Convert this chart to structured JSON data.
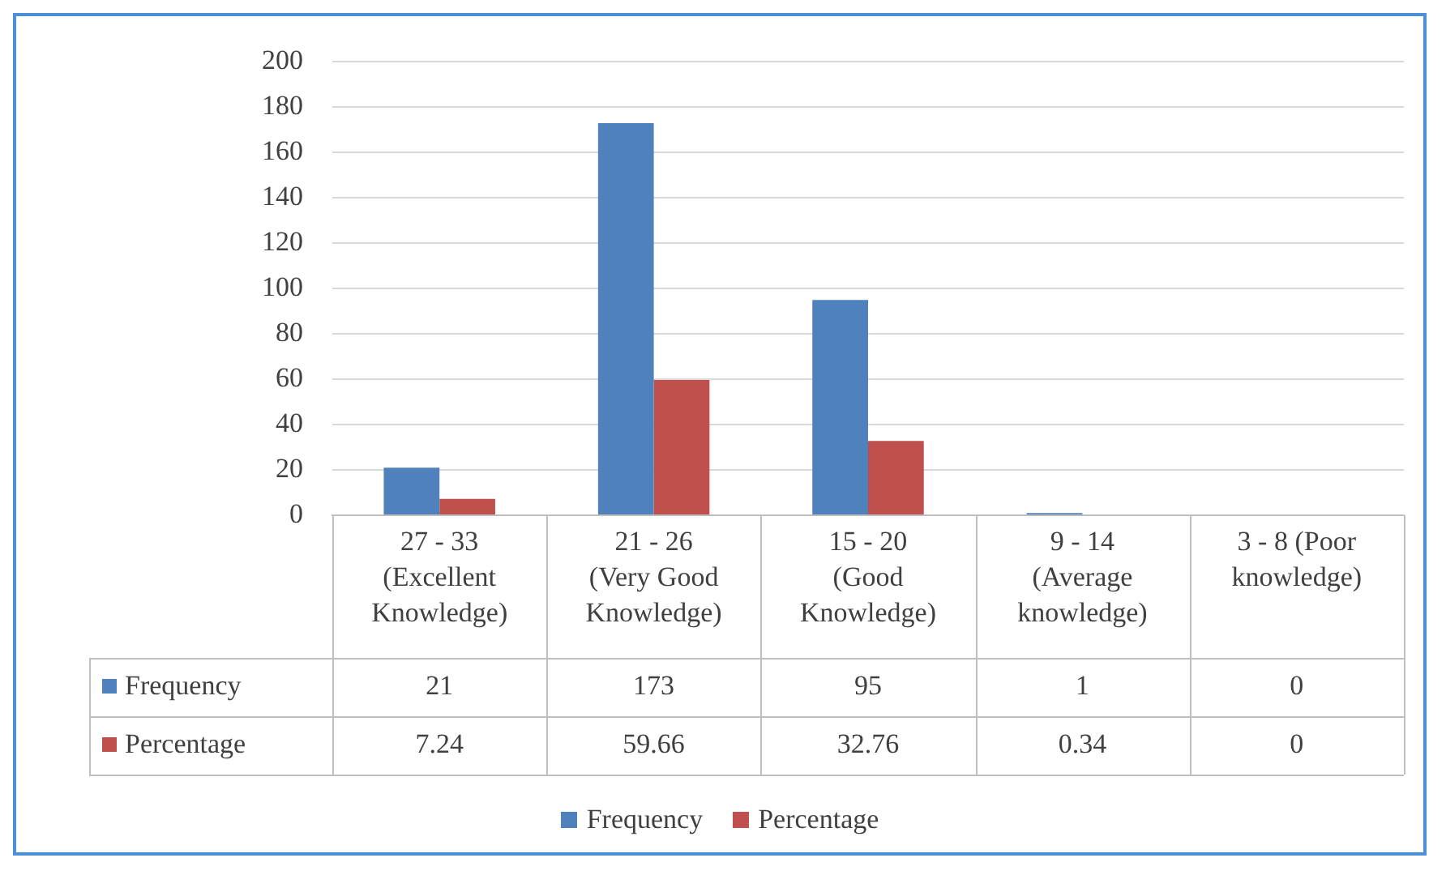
{
  "chart_data": {
    "type": "bar",
    "categories": [
      "27 - 33 (Excellent Knowledge)",
      "21 - 26 (Very Good Knowledge)",
      "15 - 20 (Good Knowledge)",
      "9 - 14 (Average knowledge)",
      "3 - 8 (Poor knowledge)"
    ],
    "series": [
      {
        "name": "Frequency",
        "color": "#4f81bd",
        "values": [
          21,
          173,
          95,
          1,
          0
        ]
      },
      {
        "name": "Percentage",
        "color": "#c0504d",
        "values": [
          7.24,
          59.66,
          32.76,
          0.34,
          0
        ]
      }
    ],
    "ylim": [
      0,
      200
    ],
    "yticks": [
      0,
      20,
      40,
      60,
      80,
      100,
      120,
      140,
      160,
      180,
      200
    ],
    "grid": "y",
    "legend": "bottom",
    "data_labels": true
  }
}
